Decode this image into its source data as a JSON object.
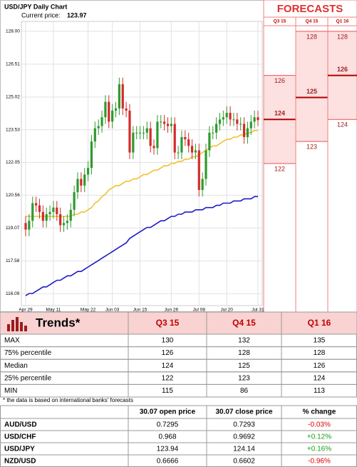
{
  "chart_data": {
    "type": "candlestick",
    "title": "USD/JPY Daily Chart",
    "subtitle": "Current price:",
    "current_price": 123.97,
    "categories": [
      "Apr 29",
      null,
      null,
      null,
      null,
      null,
      null,
      null,
      "May 11",
      null,
      null,
      null,
      null,
      null,
      null,
      null,
      null,
      null,
      "May 22",
      null,
      null,
      null,
      null,
      null,
      null,
      "Jun 03",
      null,
      null,
      null,
      null,
      null,
      null,
      null,
      "Jun 15",
      null,
      null,
      null,
      null,
      null,
      null,
      null,
      null,
      "Jun 26",
      null,
      null,
      null,
      null,
      null,
      null,
      null,
      "Jul 08",
      null,
      null,
      null,
      null,
      null,
      null,
      null,
      "Jul 20",
      null,
      null,
      null,
      null,
      null,
      null,
      null,
      null,
      "Jul 31"
    ],
    "open": [
      119.3,
      119.0,
      119.4,
      120.2,
      120.1,
      119.8,
      119.4,
      119.7,
      119.8,
      120.0,
      119.7,
      119.2,
      119.3,
      119.4,
      119.9,
      120.7,
      121.3,
      121.0,
      121.5,
      121.8,
      123.0,
      123.6,
      123.7,
      124.1,
      124.8,
      123.9,
      124.4,
      124.5,
      125.6,
      124.5,
      124.4,
      122.5,
      123.4,
      123.4,
      123.4,
      123.4,
      123.6,
      122.8,
      122.7,
      123.9,
      123.9,
      123.8,
      123.7,
      123.8,
      122.5,
      122.5,
      123.2,
      123.1,
      122.8,
      122.5,
      122.6,
      120.8,
      121.3,
      122.6,
      123.4,
      123.4,
      123.8,
      124.0,
      124.1,
      124.3,
      124.0,
      124.0,
      123.8,
      123.8,
      123.2,
      123.6,
      123.9,
      124.1
    ],
    "high": [
      119.6,
      119.7,
      120.5,
      120.5,
      120.4,
      120.1,
      120.0,
      120.1,
      120.3,
      120.3,
      120.0,
      119.6,
      119.7,
      120.2,
      121.0,
      121.6,
      121.6,
      121.8,
      122.1,
      123.3,
      123.9,
      124.0,
      124.4,
      125.1,
      125.1,
      124.7,
      124.8,
      125.9,
      125.9,
      124.8,
      124.7,
      123.7,
      123.7,
      123.7,
      123.7,
      123.9,
      123.9,
      123.1,
      124.2,
      124.2,
      124.2,
      124.1,
      124.1,
      124.1,
      122.8,
      123.5,
      123.5,
      123.4,
      123.1,
      122.9,
      122.9,
      121.6,
      122.9,
      123.7,
      123.7,
      124.1,
      124.3,
      124.4,
      124.6,
      124.6,
      124.3,
      124.3,
      124.1,
      124.1,
      123.9,
      124.2,
      124.4,
      124.4
    ],
    "low": [
      118.7,
      118.7,
      119.1,
      119.8,
      119.5,
      119.1,
      119.1,
      119.4,
      119.5,
      119.4,
      118.9,
      118.9,
      119.0,
      119.1,
      119.6,
      120.4,
      120.7,
      120.7,
      121.2,
      121.5,
      122.7,
      123.3,
      123.4,
      123.8,
      123.6,
      123.6,
      124.1,
      124.2,
      124.2,
      124.1,
      122.2,
      122.2,
      123.1,
      123.1,
      123.1,
      123.1,
      122.5,
      122.4,
      122.4,
      123.6,
      123.5,
      123.4,
      123.4,
      122.2,
      122.2,
      122.2,
      122.8,
      122.5,
      122.2,
      122.2,
      120.5,
      120.5,
      121.0,
      122.3,
      123.1,
      123.1,
      123.5,
      123.7,
      123.8,
      123.7,
      123.7,
      123.5,
      123.5,
      122.9,
      122.9,
      123.3,
      123.6,
      123.7
    ],
    "close": [
      119.0,
      119.4,
      120.2,
      120.1,
      119.8,
      119.4,
      119.7,
      119.8,
      120.0,
      119.7,
      119.2,
      119.3,
      119.4,
      119.9,
      120.7,
      121.3,
      121.0,
      121.5,
      121.8,
      123.0,
      123.6,
      123.7,
      124.1,
      124.8,
      123.9,
      124.4,
      124.5,
      125.6,
      124.5,
      124.4,
      122.5,
      123.4,
      123.4,
      123.4,
      123.4,
      123.6,
      122.8,
      122.7,
      123.9,
      123.9,
      123.8,
      123.7,
      123.8,
      122.5,
      122.5,
      123.2,
      123.1,
      122.8,
      122.5,
      122.6,
      120.8,
      121.3,
      122.6,
      123.4,
      123.4,
      123.8,
      124.0,
      124.1,
      124.3,
      124.0,
      124.0,
      123.8,
      123.8,
      123.2,
      123.6,
      123.9,
      124.1,
      123.97
    ],
    "up_color": "#2e9a2e",
    "down_color": "#d42a2a",
    "moving_averages": [
      {
        "color": "#f2c12e",
        "values": [
          119.6,
          119.6,
          119.6,
          119.6,
          119.6,
          119.6,
          119.6,
          119.6,
          119.6,
          119.6,
          119.6,
          119.6,
          119.6,
          119.6,
          119.7,
          119.7,
          119.8,
          119.8,
          119.9,
          120.0,
          120.2,
          120.3,
          120.5,
          120.6,
          120.8,
          120.9,
          121.0,
          121.0,
          121.1,
          121.2,
          121.2,
          121.3,
          121.3,
          121.4,
          121.5,
          121.5,
          121.6,
          121.7,
          121.7,
          121.8,
          121.9,
          121.9,
          122.0,
          122.0,
          122.1,
          122.1,
          122.2,
          122.2,
          122.3,
          122.3,
          122.4,
          122.5,
          122.6,
          122.7,
          122.8,
          122.8,
          122.9,
          123.0,
          123.1,
          123.1,
          123.2,
          123.2,
          123.3,
          123.3,
          123.4,
          123.4,
          123.5,
          123.5
        ]
      },
      {
        "color": "#1c1cc8",
        "values": [
          116.0,
          116.1,
          116.1,
          116.2,
          116.3,
          116.4,
          116.4,
          116.5,
          116.6,
          116.7,
          116.7,
          116.8,
          116.9,
          116.9,
          117.0,
          117.1,
          117.1,
          117.2,
          117.3,
          117.4,
          117.5,
          117.6,
          117.7,
          117.8,
          117.9,
          118.0,
          118.1,
          118.2,
          118.3,
          118.4,
          118.6,
          118.7,
          118.8,
          118.9,
          119.0,
          119.1,
          119.1,
          119.2,
          119.3,
          119.4,
          119.4,
          119.5,
          119.6,
          119.6,
          119.7,
          119.7,
          119.8,
          119.8,
          119.8,
          119.9,
          119.9,
          119.9,
          120.0,
          120.0,
          120.0,
          120.1,
          120.1,
          120.2,
          120.2,
          120.2,
          120.3,
          120.3,
          120.3,
          120.4,
          120.4,
          120.4,
          120.5,
          120.5
        ]
      }
    ],
    "ylim": [
      115.55,
      128.45
    ],
    "yticks": [
      {
        "value": 128,
        "label": "128.00"
      },
      126.51,
      125.02,
      123.53,
      122.05,
      120.56,
      119.07,
      117.58,
      116.09
    ],
    "grid": true
  },
  "forecasts": {
    "title": "FORECASTS"
  },
  "trends_table": {
    "title": "Trends*",
    "columns": [
      "Q3 15",
      "Q4 15",
      "Q1 16"
    ],
    "rows": [
      [
        "MAX",
        130,
        132,
        135
      ],
      [
        "75% percentile",
        126,
        128,
        128
      ],
      [
        "Median",
        124,
        125,
        126
      ],
      [
        "25% percentile",
        122,
        123,
        124
      ],
      [
        "MIN",
        115,
        86,
        113
      ]
    ],
    "note": "* the data is based on international banks' forecasts"
  },
  "fx_table": {
    "columns": [
      "30.07 open price",
      "30.07 close price",
      "% change"
    ],
    "rows": [
      [
        "AUD/USD",
        "0.7295",
        "0.7293",
        "-0.03%"
      ],
      [
        "USD/CHF",
        "0.968",
        "0.9692",
        "+0.12%"
      ],
      [
        "USD/JPY",
        "123.94",
        "124.14",
        "+0.16%"
      ],
      [
        "NZD/USD",
        "0.6666",
        "0.6602",
        "-0.96%"
      ]
    ],
    "change_colors": [
      "#e00000",
      "#16a016",
      "#16a016",
      "#e00000"
    ]
  }
}
